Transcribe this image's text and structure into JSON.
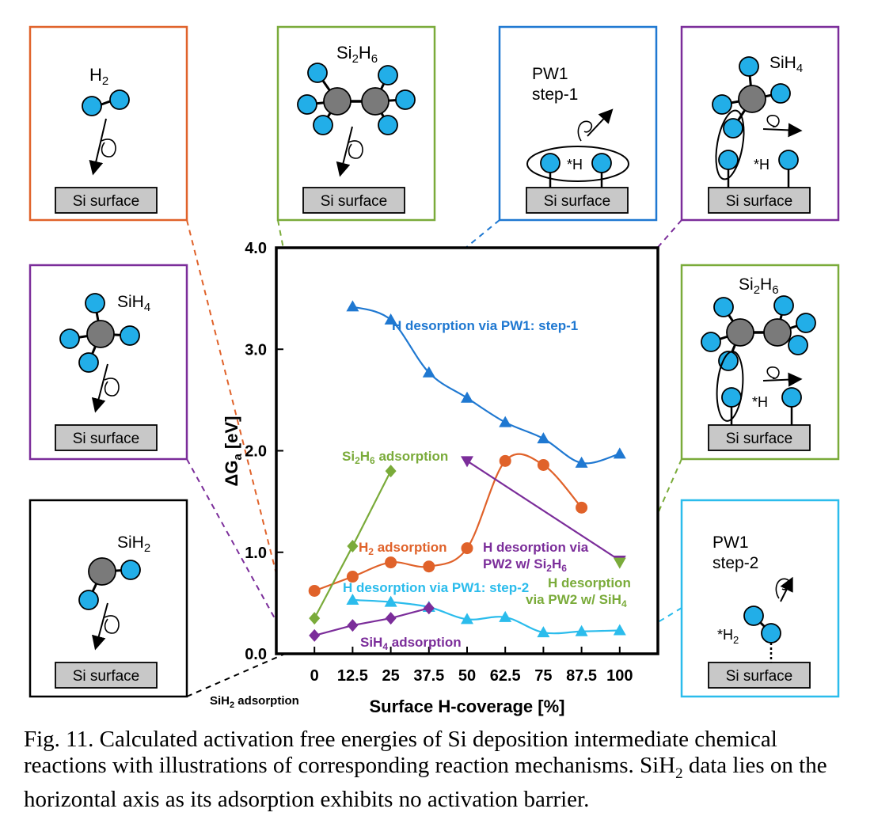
{
  "colors": {
    "blue": "#1f78d1",
    "orange": "#e0622a",
    "green": "#7aab3a",
    "purple": "#7b2d9a",
    "light_blue": "#2bbcec",
    "black": "#000000",
    "atom_h": "#22aee8",
    "atom_si": "#7a7a7a",
    "surface": "#c8c8c8"
  },
  "chart_data": {
    "type": "scatter",
    "xlabel": "Surface H-coverage [%]",
    "ylabel_main": "ΔG",
    "ylabel_sub": "a",
    "ylabel_unit": " [eV]",
    "xticks": [
      "0",
      "12.5",
      "25",
      "37.5",
      "50",
      "62.5",
      "75",
      "87.5",
      "100"
    ],
    "yticks": [
      "0.0",
      "1.0",
      "2.0",
      "3.0",
      "4.0"
    ],
    "xlim": [
      -12.5,
      112.5
    ],
    "ylim": [
      0,
      4
    ],
    "series": [
      {
        "name": "H desorption via PW1: step-1",
        "color": "blue",
        "marker": "triangle",
        "x": [
          12.5,
          25,
          37.5,
          50,
          62.5,
          75,
          87.5,
          100
        ],
        "y": [
          3.42,
          3.29,
          2.77,
          2.52,
          2.28,
          2.12,
          1.88,
          1.97
        ]
      },
      {
        "name": "H2 adsorption",
        "color": "orange",
        "marker": "circle",
        "x": [
          0,
          12.5,
          25,
          37.5,
          50,
          62.5,
          75,
          87.5
        ],
        "y": [
          0.62,
          0.76,
          0.9,
          0.86,
          1.04,
          1.9,
          1.86,
          1.44
        ]
      },
      {
        "name": "Si2H6 adsorption",
        "color": "green",
        "marker": "diamond",
        "x": [
          0,
          12.5,
          25
        ],
        "y": [
          0.35,
          1.06,
          1.8
        ]
      },
      {
        "name": "H desorption via PW2 w/ Si2H6",
        "color": "purple",
        "marker": "triangle_down",
        "x": [
          50,
          100
        ],
        "y": [
          1.9,
          0.92
        ]
      },
      {
        "name": "H desorption via PW2 w/ SiH4",
        "color": "green",
        "marker": "triangle_down",
        "x": [
          100
        ],
        "y": [
          0.9
        ]
      },
      {
        "name": "H desorption via PW1: step-2",
        "color": "light_blue",
        "marker": "triangle",
        "x": [
          12.5,
          25,
          37.5,
          50,
          62.5,
          75,
          87.5,
          100
        ],
        "y": [
          0.53,
          0.51,
          0.46,
          0.34,
          0.36,
          0.21,
          0.22,
          0.23
        ]
      },
      {
        "name": "SiH4 adsorption",
        "color": "purple",
        "marker": "diamond",
        "x": [
          0,
          12.5,
          25,
          37.5
        ],
        "y": [
          0.18,
          0.28,
          0.35,
          0.45
        ]
      },
      {
        "name": "SiH2 adsorption",
        "color": "black",
        "marker": "none",
        "x": [
          0
        ],
        "y": [
          0
        ]
      }
    ]
  },
  "labels": {
    "blue_step1": "H desorption via PW1: step-1",
    "si2h6_ads_pre": "Si",
    "si2h6_ads_sub1": "2",
    "si2h6_ads_mid": "H",
    "si2h6_ads_sub2": "6",
    "si2h6_ads_post": " adsorption",
    "h2_ads_pre": "H",
    "h2_ads_sub": "2",
    "h2_ads_post": " adsorption",
    "pw2_si2h6_line1": "H desorption via",
    "pw2_si2h6_line2_pre": "PW2 w/ Si",
    "pw2_si2h6_sub1": "2",
    "pw2_si2h6_mid": "H",
    "pw2_si2h6_sub2": "6",
    "pw2_sih4_line1": "H desorption",
    "pw2_sih4_line2_pre": "via PW2 w/ SiH",
    "pw2_sih4_sub": "4",
    "step2": "H desorption via PW1: step-2",
    "sih4_ads_pre": "SiH",
    "sih4_ads_sub": "4",
    "sih4_ads_post": " adsorption",
    "sih2_ads_pre": "SiH",
    "sih2_ads_sub": "2",
    "sih2_ads_post": " adsorption"
  },
  "panels": {
    "surface_label": "Si surface",
    "h2_pre": "H",
    "h2_sub": "2",
    "si2h6_pre": "Si",
    "si2h6_sub1": "2",
    "si2h6_mid": "H",
    "si2h6_sub2": "6",
    "pw1_line1": "PW1",
    "pw1_line2_a": "step-1",
    "pw1_line2_b": "step-2",
    "sih4_pre": "SiH",
    "sih4_sub": "4",
    "sih2_pre": "SiH",
    "sih2_sub": "2",
    "star_h": "*H",
    "star_h2_pre": "*H",
    "star_h2_sub": "2"
  },
  "caption": {
    "text_a": "Fig. 11. Calculated activation free energies of Si deposition intermediate chemical reactions with illustrations of corresponding reaction mechanisms. SiH",
    "text_sub": "2",
    "text_b": " data lies on the horizontal axis as its adsorption exhibits no activation barrier."
  }
}
